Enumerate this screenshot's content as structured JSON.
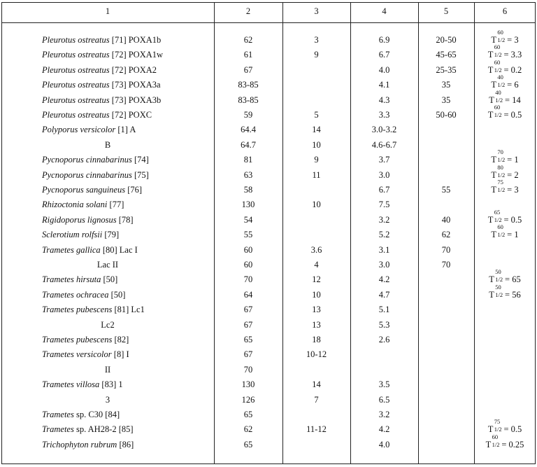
{
  "headers": [
    "1",
    "2",
    "3",
    "4",
    "5",
    "6"
  ],
  "rows": [
    {
      "species": "Pleurotus ostreatus",
      "ref": " [71] POXA1b",
      "sub": false,
      "c2": "62",
      "c3": "3",
      "c4": "6.9",
      "c5": "20-50",
      "t": {
        "sup": "60",
        "sub": "1/2",
        "val": "3"
      }
    },
    {
      "species": "Pleurotus ostreatus",
      "ref": " [72] POXA1w",
      "sub": false,
      "c2": "61",
      "c3": "9",
      "c4": "6.7",
      "c5": "45-65",
      "t": {
        "sup": "60",
        "sub": "1/2",
        "val": "3.3"
      }
    },
    {
      "species": "Pleurotus ostreatus",
      "ref": " [72] POXA2",
      "sub": false,
      "c2": "67",
      "c3": "",
      "c4": "4.0",
      "c5": "25-35",
      "t": {
        "sup": "60",
        "sub": "1/2",
        "val": "0.2"
      }
    },
    {
      "species": "Pleurotus ostreatus",
      "ref": " [73] POXA3a",
      "sub": false,
      "c2": "83-85",
      "c3": "",
      "c4": "4.1",
      "c5": "35",
      "t": {
        "sup": "40",
        "sub": "1/2",
        "val": "6"
      }
    },
    {
      "species": "Pleurotus ostreatus",
      "ref": " [73] POXA3b",
      "sub": false,
      "c2": "83-85",
      "c3": "",
      "c4": "4.3",
      "c5": "35",
      "t": {
        "sup": "40",
        "sub": "1/2",
        "val": "14"
      }
    },
    {
      "species": "Pleurotus ostreatus",
      "ref": " [72] POXC",
      "sub": false,
      "c2": "59",
      "c3": "5",
      "c4": "3.3",
      "c5": "50-60",
      "t": {
        "sup": "60",
        "sub": "1/2",
        "val": "0.5"
      }
    },
    {
      "species": "Polyporus versicolor",
      "ref": " [1] A",
      "sub": false,
      "c2": "64.4",
      "c3": "14",
      "c4": "3.0-3.2",
      "c5": "",
      "t": null
    },
    {
      "species": "",
      "ref": "B",
      "sub": true,
      "c2": "64.7",
      "c3": "10",
      "c4": "4.6-6.7",
      "c5": "",
      "t": null
    },
    {
      "species": "Pycnoporus cinnabarinus",
      "ref": " [74]",
      "sub": false,
      "c2": "81",
      "c3": "9",
      "c4": "3.7",
      "c5": "",
      "t": {
        "sup": "70",
        "sub": "1/2",
        "val": "1"
      }
    },
    {
      "species": "Pycnoporus cinnabarinus",
      "ref": " [75]",
      "sub": false,
      "c2": "63",
      "c3": "11",
      "c4": "3.0",
      "c5": "",
      "t": {
        "sup": "80",
        "sub": "1/2",
        "val": "2"
      }
    },
    {
      "species": "Pycnoporus sanguineus",
      "ref": " [76]",
      "sub": false,
      "c2": "58",
      "c3": "",
      "c4": "6.7",
      "c5": "55",
      "t": {
        "sup": "75",
        "sub": "1/2",
        "val": "3"
      }
    },
    {
      "species": "Rhizoctonia solani",
      "ref": " [77]",
      "sub": false,
      "c2": "130",
      "c3": "10",
      "c4": "7.5",
      "c5": "",
      "t": null
    },
    {
      "species": "Rigidoporus lignosus",
      "ref": " [78]",
      "sub": false,
      "c2": "54",
      "c3": "",
      "c4": "3.2",
      "c5": "40",
      "t": {
        "sup": "65",
        "sub": "1/2",
        "val": "0.5"
      }
    },
    {
      "species": "Sclerotium rolfsii",
      "ref": " [79]",
      "sub": false,
      "c2": "55",
      "c3": "",
      "c4": "5.2",
      "c5": "62",
      "t": {
        "sup": "60",
        "sub": "1/2",
        "val": "1"
      }
    },
    {
      "species": "Trametes gallica",
      "ref": " [80] Lac I",
      "sub": false,
      "c2": "60",
      "c3": "3.6",
      "c4": "3.1",
      "c5": "70",
      "t": null
    },
    {
      "species": "",
      "ref": "Lac II",
      "sub": true,
      "c2": "60",
      "c3": "4",
      "c4": "3.0",
      "c5": "70",
      "t": null
    },
    {
      "species": "Trametes hirsuta",
      "ref": " [50]",
      "sub": false,
      "c2": "70",
      "c3": "12",
      "c4": "4.2",
      "c5": "",
      "t": {
        "sup": "50",
        "sub": "1/2",
        "val": "65"
      }
    },
    {
      "species": "Trametes ochracea",
      "ref": " [50]",
      "sub": false,
      "c2": "64",
      "c3": "10",
      "c4": "4.7",
      "c5": "",
      "t": {
        "sup": "50",
        "sub": "1/2",
        "val": "56"
      }
    },
    {
      "species": "Trametes pubescens",
      "ref": " [81] Lc1",
      "sub": false,
      "c2": "67",
      "c3": "13",
      "c4": "5.1",
      "c5": "",
      "t": null
    },
    {
      "species": "",
      "ref": "Lc2",
      "sub": true,
      "c2": "67",
      "c3": "13",
      "c4": "5.3",
      "c5": "",
      "t": null
    },
    {
      "species": "Trametes pubescens",
      "ref": " [82]",
      "sub": false,
      "c2": "65",
      "c3": "18",
      "c4": "2.6",
      "c5": "",
      "t": null
    },
    {
      "species": "Trametes versicolor",
      "ref": " [8] I",
      "sub": false,
      "c2": "67",
      "c3": "10-12",
      "c4": "",
      "c5": "",
      "t": null
    },
    {
      "species": "",
      "ref": "II",
      "sub": true,
      "c2": "70",
      "c3": "",
      "c4": "",
      "c5": "",
      "t": null
    },
    {
      "species": "Trametes villosa",
      "ref": " [83] 1",
      "sub": false,
      "c2": "130",
      "c3": "14",
      "c4": "3.5",
      "c5": "",
      "t": null
    },
    {
      "species": "",
      "ref": "3",
      "sub": true,
      "c2": "126",
      "c3": "7",
      "c4": "6.5",
      "c5": "",
      "t": null
    },
    {
      "species": "Trametes",
      "ref": " sp. C30 [84]",
      "sub": false,
      "c2": "65",
      "c3": "",
      "c4": "3.2",
      "c5": "",
      "t": null
    },
    {
      "species": "Trametes",
      "ref": " sp. AH28-2 [85]",
      "sub": false,
      "c2": "62",
      "c3": "11-12",
      "c4": "4.2",
      "c5": "",
      "t": {
        "sup": "75",
        "sub": "1/2",
        "val": "0.5"
      }
    },
    {
      "species": "Trichophyton rubrum",
      "ref": " [86]",
      "sub": false,
      "c2": "65",
      "c3": "",
      "c4": "4.0",
      "c5": "",
      "t": {
        "sup": "60",
        "sub": "1/2",
        "val": "0.25"
      }
    }
  ]
}
